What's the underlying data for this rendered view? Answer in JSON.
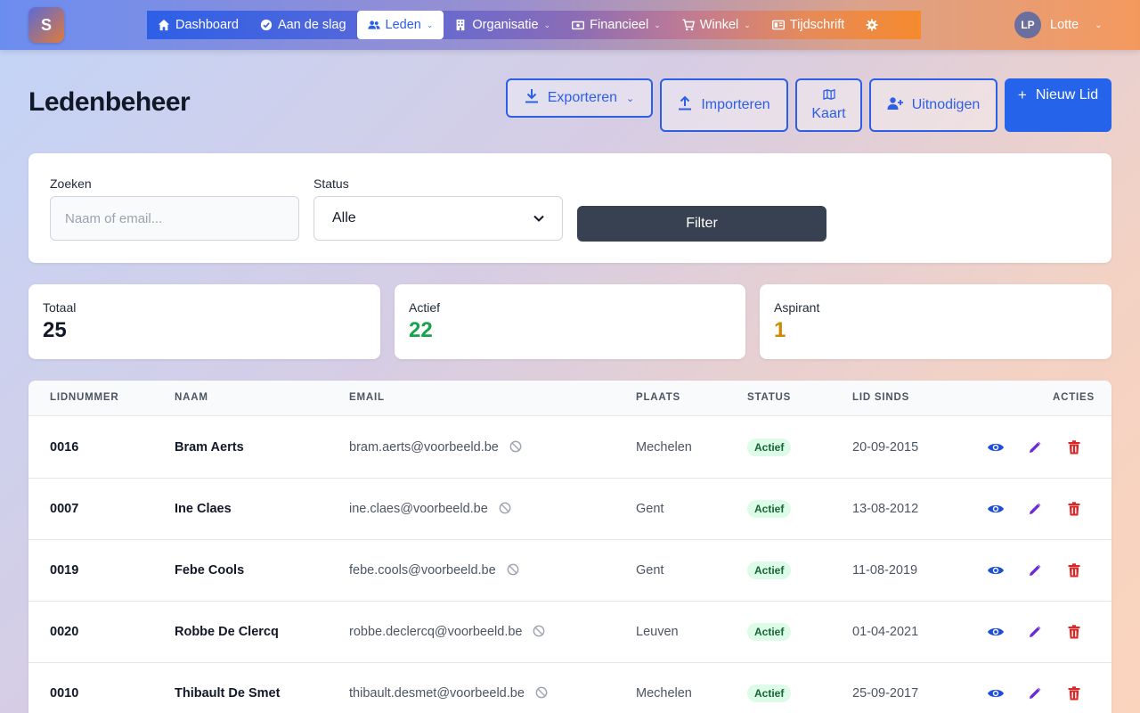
{
  "app": {
    "logo_letter": "S"
  },
  "nav": {
    "items": [
      {
        "label": "Dashboard",
        "icon": "home-icon",
        "has_dropdown": false,
        "active": false
      },
      {
        "label": "Aan de slag",
        "icon": "check-circle-icon",
        "has_dropdown": false,
        "active": false
      },
      {
        "label": "Leden",
        "icon": "users-icon",
        "has_dropdown": true,
        "active": true
      },
      {
        "label": "Organisatie",
        "icon": "building-icon",
        "has_dropdown": true,
        "active": false
      },
      {
        "label": "Financieel",
        "icon": "money-icon",
        "has_dropdown": true,
        "active": false
      },
      {
        "label": "Winkel",
        "icon": "cart-icon",
        "has_dropdown": true,
        "active": false
      },
      {
        "label": "Tijdschrift",
        "icon": "newspaper-icon",
        "has_dropdown": false,
        "active": false
      }
    ],
    "settings_icon": "gear-icon"
  },
  "user": {
    "initials": "LP",
    "name": "Lotte"
  },
  "page": {
    "title": "Ledenbeheer",
    "buttons": {
      "export": "Exporteren",
      "import": "Importeren",
      "map": "Kaart",
      "invite": "Uitnodigen",
      "new_member": "Nieuw Lid"
    }
  },
  "filters": {
    "search_label": "Zoeken",
    "search_placeholder": "Naam of email...",
    "status_label": "Status",
    "status_value": "Alle",
    "filter_button": "Filter"
  },
  "stats": [
    {
      "label": "Totaal",
      "value": "25",
      "color": "#111827"
    },
    {
      "label": "Actief",
      "value": "22",
      "color": "#16a34a"
    },
    {
      "label": "Aspirant",
      "value": "1",
      "color": "#ca8a04"
    }
  ],
  "table": {
    "headers": {
      "number": "LIDNUMMER",
      "name": "NAAM",
      "email": "EMAIL",
      "city": "PLAATS",
      "status": "STATUS",
      "since": "LID SINDS",
      "actions": "ACTIES"
    },
    "rows": [
      {
        "number": "0016",
        "name": "Bram Aerts",
        "email": "bram.aerts@voorbeeld.be",
        "city": "Mechelen",
        "status": "Actief",
        "since": "20-09-2015"
      },
      {
        "number": "0007",
        "name": "Ine Claes",
        "email": "ine.claes@voorbeeld.be",
        "city": "Gent",
        "status": "Actief",
        "since": "13-08-2012"
      },
      {
        "number": "0019",
        "name": "Febe Cools",
        "email": "febe.cools@voorbeeld.be",
        "city": "Gent",
        "status": "Actief",
        "since": "11-08-2019"
      },
      {
        "number": "0020",
        "name": "Robbe De Clercq",
        "email": "robbe.declercq@voorbeeld.be",
        "city": "Leuven",
        "status": "Actief",
        "since": "01-04-2021"
      },
      {
        "number": "0010",
        "name": "Thibault De Smet",
        "email": "thibault.desmet@voorbeeld.be",
        "city": "Mechelen",
        "status": "Actief",
        "since": "25-09-2017"
      }
    ]
  },
  "colors": {
    "primary": "#2563eb",
    "view_icon": "#1d4ed8",
    "edit_icon": "#6d28d9",
    "delete_icon": "#dc2626",
    "badge_bg": "#dcfce7",
    "badge_text": "#166534"
  }
}
